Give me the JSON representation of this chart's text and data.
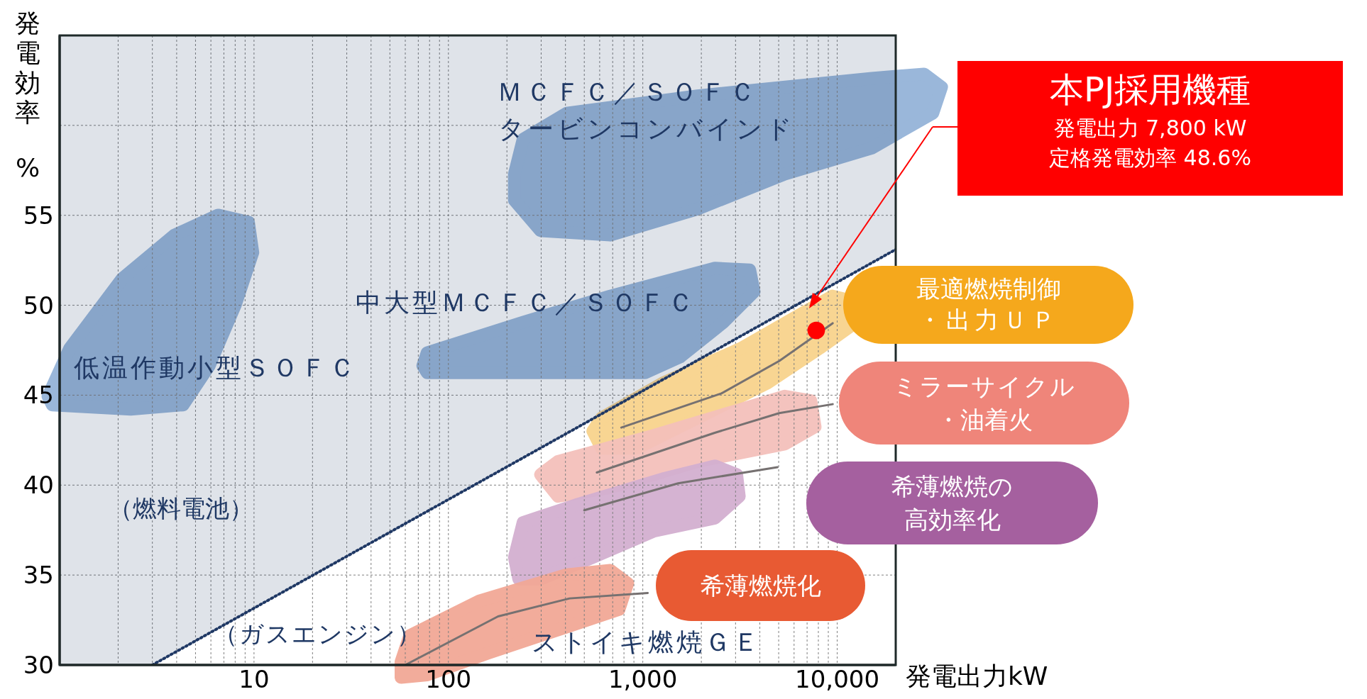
{
  "chart_data": {
    "type": "line",
    "xlabel": "発電出力kW",
    "ylabel": "発電効率 %",
    "log": "x",
    "grid": true,
    "legend": false,
    "marker": "none",
    "xlim": [
      1,
      20000
    ],
    "ylim": [
      30,
      65
    ],
    "xticks": [
      {
        "value": 2,
        "label": null
      },
      {
        "value": 3,
        "label": null
      },
      {
        "value": 4,
        "label": null
      },
      {
        "value": 5,
        "label": null
      },
      {
        "value": 6,
        "label": null
      },
      {
        "value": 7,
        "label": null
      },
      {
        "value": 8,
        "label": null
      },
      {
        "value": 9,
        "label": null
      },
      10,
      {
        "value": 20,
        "label": null
      },
      {
        "value": 30,
        "label": null
      },
      {
        "value": 40,
        "label": null
      },
      {
        "value": 50,
        "label": null
      },
      {
        "value": 60,
        "label": null
      },
      {
        "value": 70,
        "label": null
      },
      {
        "value": 80,
        "label": null
      },
      {
        "value": 90,
        "label": null
      },
      100,
      {
        "value": 200,
        "label": null
      },
      {
        "value": 300,
        "label": null
      },
      {
        "value": 400,
        "label": null
      },
      {
        "value": 500,
        "label": null
      },
      {
        "value": 600,
        "label": null
      },
      {
        "value": 700,
        "label": null
      },
      {
        "value": 800,
        "label": null
      },
      {
        "value": 900,
        "label": null
      },
      {
        "value": 1000,
        "label": "1,000"
      },
      {
        "value": 2000,
        "label": null
      },
      {
        "value": 3000,
        "label": null
      },
      {
        "value": 4000,
        "label": null
      },
      {
        "value": 5000,
        "label": null
      },
      {
        "value": 6000,
        "label": null
      },
      {
        "value": 7000,
        "label": null
      },
      {
        "value": 8000,
        "label": null
      },
      {
        "value": 9000,
        "label": null
      },
      {
        "value": 10000,
        "label": "10,000"
      }
    ],
    "yticks": [
      30,
      35,
      40,
      45,
      50,
      55,
      {
        "value": 60,
        "label": null
      },
      {
        "value": 65,
        "label": null
      }
    ],
    "series": [
      {
        "color": "#1f3864",
        "line_style": "dotted",
        "x": [
          1,
          3,
          20000
        ],
        "values": [
          null,
          30,
          53.1
        ],
        "lower": [
          30,
          30,
          53.1
        ],
        "upper": [
          65,
          65,
          65
        ]
      },
      {
        "color": "#767171",
        "line_style": "solid",
        "x": [
          775,
          2540,
          5030,
          9480
        ],
        "values": [
          43.2,
          45.1,
          46.9,
          49.0
        ]
      },
      {
        "color": "#767171",
        "line_style": "solid",
        "x": [
          580,
          2330,
          5030,
          9480
        ],
        "values": [
          40.7,
          42.9,
          44.0,
          44.5
        ]
      },
      {
        "color": "#767171",
        "line_style": "solid",
        "x": [
          500,
          1520,
          4930
        ],
        "values": [
          38.6,
          40.1,
          41.0
        ]
      },
      {
        "color": "#767171",
        "line_style": "solid",
        "x": [
          60,
          180,
          420,
          1060
        ],
        "values": [
          30,
          32.7,
          33.7,
          34.0
        ]
      },
      {
        "type": "scatter",
        "color": "#ff0000",
        "marker": "circle",
        "x": [
          7800
        ],
        "values": [
          48.6
        ]
      }
    ],
    "annotations": [
      "ＭＣＦＣ／ＳＯＦＣ",
      "タービンコンバインド",
      "中大型ＭＣＦＣ／ＳＯＦＣ",
      "低温作動小型ＳＯＦＣ",
      "（燃料電池）",
      "（ガスエンジン）",
      "ストイキ燃焼ＧＥ",
      "最適燃焼制御",
      "・出力ＵＰ",
      "ミラーサイクル",
      "・油着火",
      "希薄燃焼の",
      "高効率化",
      "希薄燃焼化",
      "本PJ採用機種",
      "発電出力 7,800 kW",
      "定格発電効率 48.6%"
    ]
  }
}
